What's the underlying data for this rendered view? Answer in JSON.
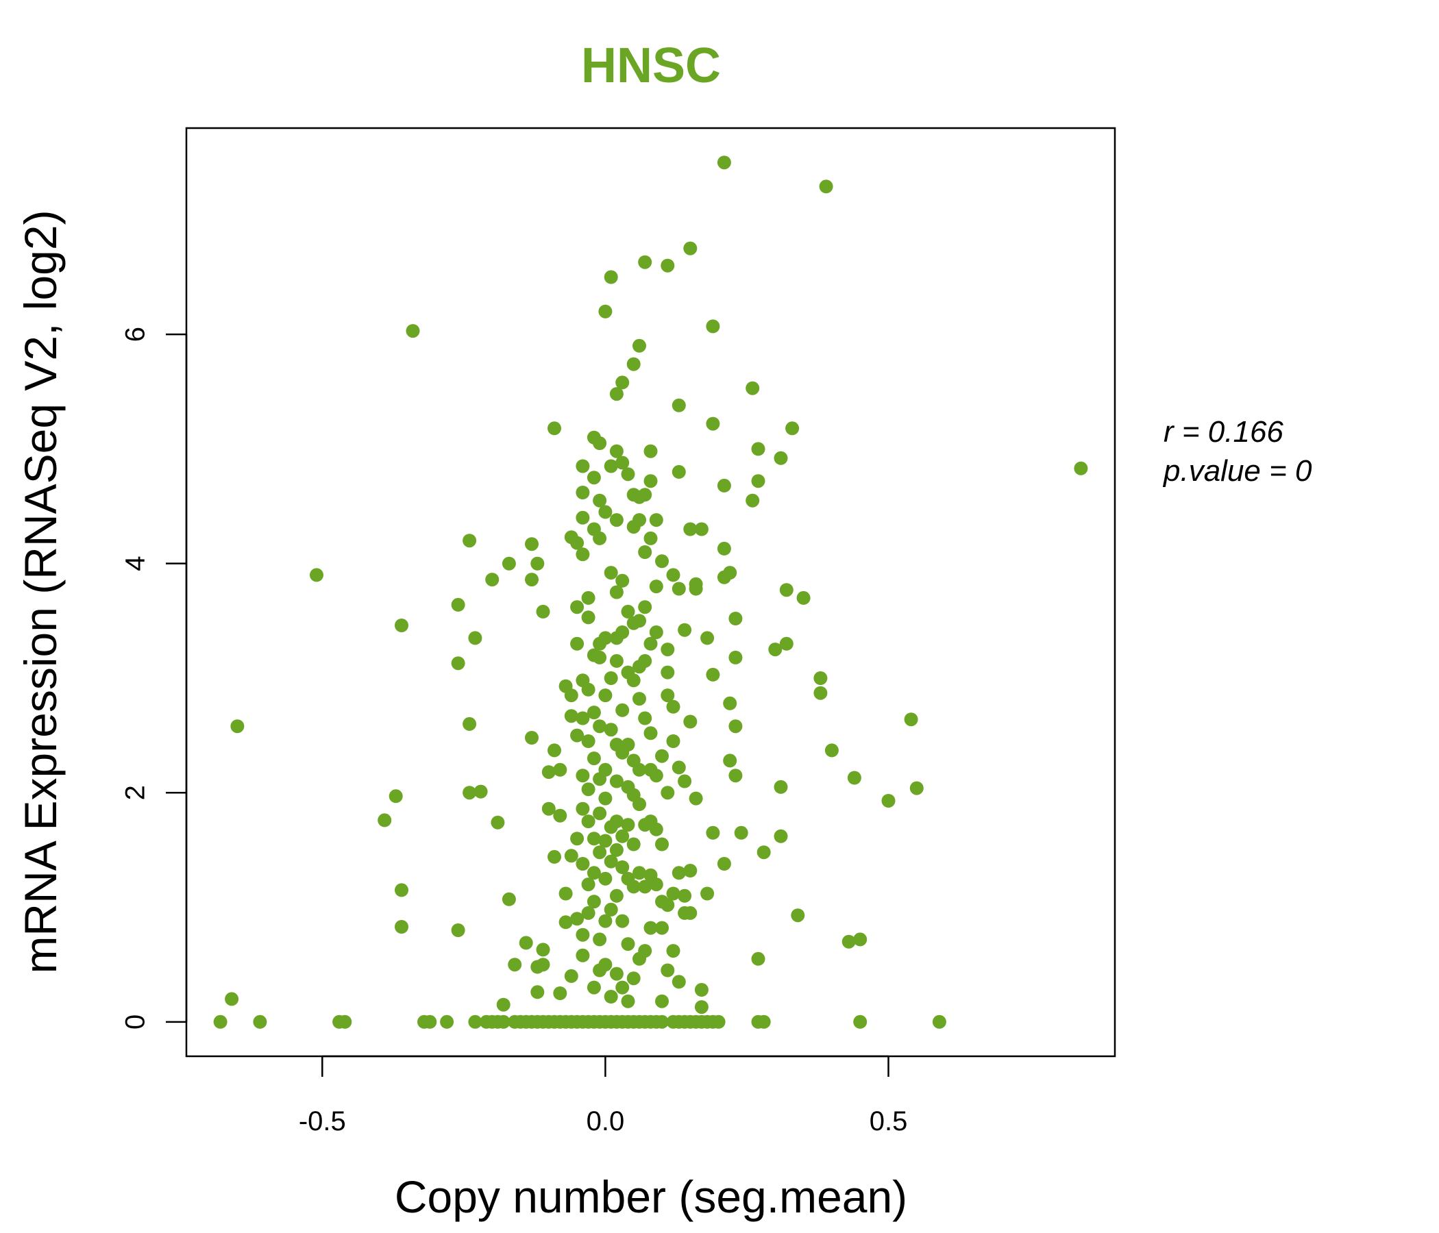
{
  "chart_data": {
    "type": "scatter",
    "title": "HNSC",
    "xlabel": "Copy number (seg.mean)",
    "ylabel": "mRNA Expression (RNASeq V2, log2)",
    "xlim": [
      -0.74,
      0.9
    ],
    "ylim": [
      -0.3,
      7.8
    ],
    "x_ticks": [
      -0.5,
      0.0,
      0.5
    ],
    "x_tick_labels": [
      "-0.5",
      "0.0",
      "0.5"
    ],
    "y_ticks": [
      0,
      2,
      4,
      6
    ],
    "y_tick_labels": [
      "0",
      "2",
      "4",
      "6"
    ],
    "grid": false,
    "marker_color": "#6aa523",
    "title_color": "#6aa523",
    "annotations": {
      "r_text": "r = 0.166",
      "p_text": "p.value = 0"
    },
    "points": [
      [
        -0.68,
        0.0
      ],
      [
        -0.66,
        0.2
      ],
      [
        -0.65,
        2.58
      ],
      [
        -0.61,
        0.0
      ],
      [
        -0.51,
        3.9
      ],
      [
        -0.47,
        0.0
      ],
      [
        -0.46,
        0.0
      ],
      [
        -0.39,
        1.76
      ],
      [
        -0.37,
        1.97
      ],
      [
        -0.36,
        3.46
      ],
      [
        -0.36,
        1.15
      ],
      [
        -0.36,
        0.83
      ],
      [
        -0.34,
        6.03
      ],
      [
        -0.32,
        0.0
      ],
      [
        -0.31,
        0.0
      ],
      [
        -0.28,
        0.0
      ],
      [
        -0.26,
        3.13
      ],
      [
        -0.26,
        3.64
      ],
      [
        -0.26,
        0.8
      ],
      [
        -0.24,
        4.2
      ],
      [
        -0.24,
        2.6
      ],
      [
        -0.24,
        2.0
      ],
      [
        -0.23,
        3.35
      ],
      [
        -0.22,
        2.01
      ],
      [
        -0.23,
        0.0
      ],
      [
        -0.21,
        0.0
      ],
      [
        -0.2,
        3.86
      ],
      [
        -0.19,
        1.74
      ],
      [
        -0.17,
        1.07
      ],
      [
        -0.18,
        0.15
      ],
      [
        -0.17,
        4.0
      ],
      [
        -0.16,
        0.5
      ],
      [
        -0.15,
        0.0
      ],
      [
        -0.14,
        0.69
      ],
      [
        -0.13,
        4.17
      ],
      [
        -0.13,
        2.48
      ],
      [
        -0.13,
        3.86
      ],
      [
        -0.12,
        4.0
      ],
      [
        -0.12,
        0.26
      ],
      [
        -0.12,
        0.48
      ],
      [
        -0.11,
        0.63
      ],
      [
        -0.11,
        0.5
      ],
      [
        -0.11,
        3.58
      ],
      [
        -0.1,
        1.86
      ],
      [
        -0.1,
        2.18
      ],
      [
        -0.09,
        5.18
      ],
      [
        -0.09,
        2.37
      ],
      [
        -0.09,
        1.44
      ],
      [
        -0.08,
        2.2
      ],
      [
        -0.08,
        1.8
      ],
      [
        -0.08,
        0.25
      ],
      [
        -0.07,
        2.93
      ],
      [
        -0.07,
        0.87
      ],
      [
        -0.07,
        1.12
      ],
      [
        -0.06,
        4.23
      ],
      [
        -0.06,
        2.85
      ],
      [
        -0.06,
        2.67
      ],
      [
        -0.06,
        1.45
      ],
      [
        -0.06,
        0.4
      ],
      [
        -0.05,
        4.18
      ],
      [
        -0.05,
        3.62
      ],
      [
        -0.05,
        3.3
      ],
      [
        -0.05,
        2.5
      ],
      [
        -0.05,
        1.6
      ],
      [
        -0.05,
        0.9
      ],
      [
        -0.04,
        4.85
      ],
      [
        -0.04,
        4.4
      ],
      [
        -0.04,
        4.62
      ],
      [
        -0.04,
        4.08
      ],
      [
        -0.04,
        2.98
      ],
      [
        -0.04,
        2.65
      ],
      [
        -0.04,
        2.15
      ],
      [
        -0.04,
        1.86
      ],
      [
        -0.04,
        1.38
      ],
      [
        -0.04,
        0.76
      ],
      [
        -0.04,
        0.58
      ],
      [
        -0.03,
        3.7
      ],
      [
        -0.03,
        3.53
      ],
      [
        -0.03,
        2.9
      ],
      [
        -0.03,
        2.45
      ],
      [
        -0.03,
        2.03
      ],
      [
        -0.03,
        1.75
      ],
      [
        -0.03,
        1.2
      ],
      [
        -0.03,
        0.95
      ],
      [
        -0.02,
        5.1
      ],
      [
        -0.02,
        4.75
      ],
      [
        -0.02,
        4.3
      ],
      [
        -0.02,
        3.2
      ],
      [
        -0.02,
        2.7
      ],
      [
        -0.02,
        2.3
      ],
      [
        -0.02,
        1.6
      ],
      [
        -0.02,
        1.3
      ],
      [
        -0.02,
        1.05
      ],
      [
        -0.02,
        0.3
      ],
      [
        -0.01,
        5.05
      ],
      [
        -0.01,
        4.55
      ],
      [
        -0.01,
        4.22
      ],
      [
        -0.01,
        3.3
      ],
      [
        -0.01,
        3.18
      ],
      [
        -0.01,
        2.58
      ],
      [
        -0.01,
        2.12
      ],
      [
        -0.01,
        1.82
      ],
      [
        -0.01,
        1.48
      ],
      [
        -0.01,
        0.72
      ],
      [
        -0.01,
        0.45
      ],
      [
        0.0,
        6.2
      ],
      [
        0.0,
        4.45
      ],
      [
        0.0,
        3.35
      ],
      [
        0.0,
        2.85
      ],
      [
        0.0,
        2.2
      ],
      [
        0.0,
        1.95
      ],
      [
        0.0,
        1.58
      ],
      [
        0.0,
        1.25
      ],
      [
        0.0,
        0.88
      ],
      [
        0.0,
        0.5
      ],
      [
        0.01,
        6.5
      ],
      [
        0.01,
        4.85
      ],
      [
        0.01,
        3.92
      ],
      [
        0.01,
        3.0
      ],
      [
        0.01,
        2.55
      ],
      [
        0.01,
        1.7
      ],
      [
        0.01,
        1.4
      ],
      [
        0.01,
        0.98
      ],
      [
        0.01,
        0.22
      ],
      [
        0.02,
        5.48
      ],
      [
        0.02,
        4.98
      ],
      [
        0.02,
        4.38
      ],
      [
        0.02,
        3.75
      ],
      [
        0.02,
        3.35
      ],
      [
        0.02,
        3.15
      ],
      [
        0.02,
        2.42
      ],
      [
        0.02,
        2.1
      ],
      [
        0.02,
        1.75
      ],
      [
        0.02,
        1.5
      ],
      [
        0.02,
        1.1
      ],
      [
        0.02,
        0.42
      ],
      [
        0.03,
        5.58
      ],
      [
        0.03,
        4.88
      ],
      [
        0.03,
        3.85
      ],
      [
        0.03,
        3.4
      ],
      [
        0.03,
        2.72
      ],
      [
        0.03,
        2.35
      ],
      [
        0.03,
        1.62
      ],
      [
        0.03,
        1.35
      ],
      [
        0.03,
        0.88
      ],
      [
        0.03,
        0.3
      ],
      [
        0.04,
        4.78
      ],
      [
        0.04,
        3.58
      ],
      [
        0.04,
        3.05
      ],
      [
        0.04,
        2.42
      ],
      [
        0.04,
        2.05
      ],
      [
        0.04,
        1.72
      ],
      [
        0.04,
        1.25
      ],
      [
        0.04,
        0.68
      ],
      [
        0.04,
        0.18
      ],
      [
        0.05,
        5.74
      ],
      [
        0.05,
        4.6
      ],
      [
        0.05,
        4.32
      ],
      [
        0.05,
        3.48
      ],
      [
        0.05,
        2.98
      ],
      [
        0.05,
        2.28
      ],
      [
        0.05,
        1.98
      ],
      [
        0.05,
        1.55
      ],
      [
        0.05,
        1.18
      ],
      [
        0.05,
        0.38
      ],
      [
        0.06,
        5.9
      ],
      [
        0.06,
        4.58
      ],
      [
        0.06,
        4.38
      ],
      [
        0.06,
        3.5
      ],
      [
        0.06,
        3.1
      ],
      [
        0.06,
        2.82
      ],
      [
        0.06,
        2.2
      ],
      [
        0.06,
        1.9
      ],
      [
        0.06,
        1.3
      ],
      [
        0.06,
        0.55
      ],
      [
        0.07,
        6.63
      ],
      [
        0.07,
        4.6
      ],
      [
        0.07,
        4.1
      ],
      [
        0.07,
        3.62
      ],
      [
        0.07,
        3.15
      ],
      [
        0.07,
        2.65
      ],
      [
        0.07,
        1.72
      ],
      [
        0.07,
        1.18
      ],
      [
        0.07,
        0.62
      ],
      [
        0.08,
        4.98
      ],
      [
        0.08,
        4.72
      ],
      [
        0.08,
        4.22
      ],
      [
        0.08,
        3.3
      ],
      [
        0.08,
        2.52
      ],
      [
        0.08,
        2.2
      ],
      [
        0.08,
        1.75
      ],
      [
        0.08,
        1.28
      ],
      [
        0.08,
        0.82
      ],
      [
        0.09,
        4.38
      ],
      [
        0.09,
        3.8
      ],
      [
        0.09,
        3.4
      ],
      [
        0.09,
        2.15
      ],
      [
        0.09,
        1.68
      ],
      [
        0.09,
        1.2
      ],
      [
        0.1,
        4.02
      ],
      [
        0.1,
        2.32
      ],
      [
        0.1,
        1.55
      ],
      [
        0.1,
        1.05
      ],
      [
        0.1,
        0.82
      ],
      [
        0.1,
        0.18
      ],
      [
        0.11,
        6.6
      ],
      [
        0.11,
        3.25
      ],
      [
        0.11,
        3.05
      ],
      [
        0.11,
        2.85
      ],
      [
        0.11,
        2.0
      ],
      [
        0.11,
        1.02
      ],
      [
        0.11,
        0.45
      ],
      [
        0.12,
        3.9
      ],
      [
        0.12,
        2.45
      ],
      [
        0.12,
        2.75
      ],
      [
        0.12,
        1.12
      ],
      [
        0.12,
        0.62
      ],
      [
        0.13,
        5.38
      ],
      [
        0.13,
        4.8
      ],
      [
        0.13,
        3.78
      ],
      [
        0.13,
        2.22
      ],
      [
        0.13,
        1.3
      ],
      [
        0.13,
        0.35
      ],
      [
        0.14,
        3.42
      ],
      [
        0.14,
        2.1
      ],
      [
        0.14,
        1.1
      ],
      [
        0.14,
        0.95
      ],
      [
        0.15,
        6.75
      ],
      [
        0.15,
        4.3
      ],
      [
        0.15,
        2.62
      ],
      [
        0.15,
        1.32
      ],
      [
        0.15,
        0.95
      ],
      [
        0.16,
        3.82
      ],
      [
        0.16,
        3.78
      ],
      [
        0.16,
        1.95
      ],
      [
        0.17,
        4.3
      ],
      [
        0.17,
        0.28
      ],
      [
        0.17,
        0.13
      ],
      [
        0.18,
        3.35
      ],
      [
        0.18,
        1.12
      ],
      [
        0.19,
        6.07
      ],
      [
        0.19,
        5.22
      ],
      [
        0.19,
        3.03
      ],
      [
        0.19,
        1.65
      ],
      [
        0.21,
        7.5
      ],
      [
        0.21,
        4.68
      ],
      [
        0.21,
        4.13
      ],
      [
        0.21,
        3.88
      ],
      [
        0.21,
        1.38
      ],
      [
        0.22,
        3.92
      ],
      [
        0.22,
        2.78
      ],
      [
        0.22,
        2.28
      ],
      [
        0.23,
        3.18
      ],
      [
        0.23,
        2.15
      ],
      [
        0.23,
        3.52
      ],
      [
        0.23,
        2.58
      ],
      [
        0.24,
        1.65
      ],
      [
        0.26,
        5.53
      ],
      [
        0.26,
        4.55
      ],
      [
        0.27,
        5.0
      ],
      [
        0.27,
        4.72
      ],
      [
        0.27,
        0.55
      ],
      [
        0.28,
        1.48
      ],
      [
        0.3,
        3.25
      ],
      [
        0.31,
        4.92
      ],
      [
        0.31,
        2.05
      ],
      [
        0.31,
        1.62
      ],
      [
        0.32,
        3.3
      ],
      [
        0.32,
        3.77
      ],
      [
        0.33,
        5.18
      ],
      [
        0.34,
        0.93
      ],
      [
        0.35,
        3.7
      ],
      [
        0.38,
        2.87
      ],
      [
        0.38,
        3.0
      ],
      [
        0.39,
        7.29
      ],
      [
        0.4,
        2.37
      ],
      [
        0.43,
        0.7
      ],
      [
        0.44,
        2.13
      ],
      [
        0.45,
        0.72
      ],
      [
        0.45,
        0.0
      ],
      [
        0.5,
        1.93
      ],
      [
        0.54,
        2.64
      ],
      [
        0.55,
        2.04
      ],
      [
        0.59,
        0.0
      ],
      [
        0.84,
        4.83
      ],
      [
        -0.2,
        0.0
      ],
      [
        -0.19,
        0.0
      ],
      [
        -0.18,
        0.0
      ],
      [
        -0.16,
        0.0
      ],
      [
        -0.14,
        0.0
      ],
      [
        -0.13,
        0.0
      ],
      [
        -0.12,
        0.0
      ],
      [
        -0.11,
        0.0
      ],
      [
        -0.1,
        0.0
      ],
      [
        -0.09,
        0.0
      ],
      [
        -0.08,
        0.0
      ],
      [
        -0.07,
        0.0
      ],
      [
        -0.06,
        0.0
      ],
      [
        -0.05,
        0.0
      ],
      [
        -0.04,
        0.0
      ],
      [
        -0.03,
        0.0
      ],
      [
        -0.02,
        0.0
      ],
      [
        -0.01,
        0.0
      ],
      [
        0.0,
        0.0
      ],
      [
        0.01,
        0.0
      ],
      [
        0.02,
        0.0
      ],
      [
        0.03,
        0.0
      ],
      [
        0.04,
        0.0
      ],
      [
        0.05,
        0.0
      ],
      [
        0.06,
        0.0
      ],
      [
        0.07,
        0.0
      ],
      [
        0.08,
        0.0
      ],
      [
        0.09,
        0.0
      ],
      [
        0.1,
        0.0
      ],
      [
        0.12,
        0.0
      ],
      [
        0.13,
        0.0
      ],
      [
        0.14,
        0.0
      ],
      [
        0.15,
        0.0
      ],
      [
        0.16,
        0.0
      ],
      [
        0.17,
        0.0
      ],
      [
        0.18,
        0.0
      ],
      [
        0.19,
        0.0
      ],
      [
        0.2,
        0.0
      ],
      [
        0.27,
        0.0
      ],
      [
        0.28,
        0.0
      ]
    ]
  }
}
